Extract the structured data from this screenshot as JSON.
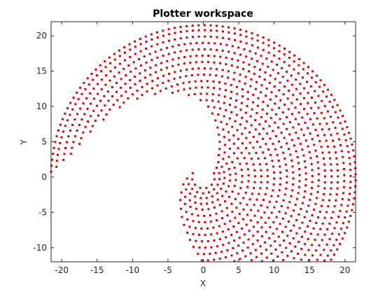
{
  "chart_data": {
    "type": "scatter",
    "title": "Plotter workspace",
    "xlabel": "X",
    "ylabel": "Y",
    "xlim": [
      -21.5,
      21.5
    ],
    "ylim": [
      -12,
      22
    ],
    "xticks": [
      -20,
      -15,
      -10,
      -5,
      0,
      5,
      10,
      15,
      20
    ],
    "yticks": [
      -10,
      -5,
      0,
      5,
      10,
      15,
      20
    ],
    "grid": false,
    "marker_color": "#dd0000",
    "series": [
      {
        "description_points": "fan of circular arcs about origin",
        "arcs": [
          {
            "radius": 1.6,
            "theta_start_deg": -200,
            "theta_end_deg": 20
          },
          {
            "radius": 2.3,
            "theta_start_deg": -175,
            "theta_end_deg": 35
          },
          {
            "radius": 3.0,
            "theta_start_deg": -160,
            "theta_end_deg": 45
          },
          {
            "radius": 3.8,
            "theta_start_deg": -145,
            "theta_end_deg": 55
          },
          {
            "radius": 4.6,
            "theta_start_deg": -135,
            "theta_end_deg": 60
          },
          {
            "radius": 5.5,
            "theta_start_deg": -125,
            "theta_end_deg": 65
          },
          {
            "radius": 6.4,
            "theta_start_deg": -118,
            "theta_end_deg": 70
          },
          {
            "radius": 7.3,
            "theta_start_deg": -112,
            "theta_end_deg": 74
          },
          {
            "radius": 8.2,
            "theta_start_deg": -106,
            "theta_end_deg": 78
          },
          {
            "radius": 9.1,
            "theta_start_deg": -102,
            "theta_end_deg": 82
          },
          {
            "radius": 10.0,
            "theta_start_deg": -98,
            "theta_end_deg": 86
          },
          {
            "radius": 10.9,
            "theta_start_deg": -94,
            "theta_end_deg": 92
          },
          {
            "radius": 11.8,
            "theta_start_deg": -91,
            "theta_end_deg": 100
          },
          {
            "radius": 12.7,
            "theta_start_deg": -85,
            "theta_end_deg": 110
          },
          {
            "radius": 13.6,
            "theta_start_deg": -78,
            "theta_end_deg": 120
          },
          {
            "radius": 14.5,
            "theta_start_deg": -72,
            "theta_end_deg": 130
          },
          {
            "radius": 15.4,
            "theta_start_deg": -66,
            "theta_end_deg": 140
          },
          {
            "radius": 16.3,
            "theta_start_deg": -61,
            "theta_end_deg": 150
          },
          {
            "radius": 17.2,
            "theta_start_deg": -56,
            "theta_end_deg": 158
          },
          {
            "radius": 18.1,
            "theta_start_deg": -51,
            "theta_end_deg": 165
          },
          {
            "radius": 19.0,
            "theta_start_deg": -46,
            "theta_end_deg": 170
          },
          {
            "radius": 19.9,
            "theta_start_deg": -41,
            "theta_end_deg": 173
          },
          {
            "radius": 20.8,
            "theta_start_deg": -37,
            "theta_end_deg": 176
          },
          {
            "radius": 21.5,
            "theta_start_deg": -33,
            "theta_end_deg": 178
          }
        ],
        "point_spacing": 0.85
      }
    ]
  }
}
